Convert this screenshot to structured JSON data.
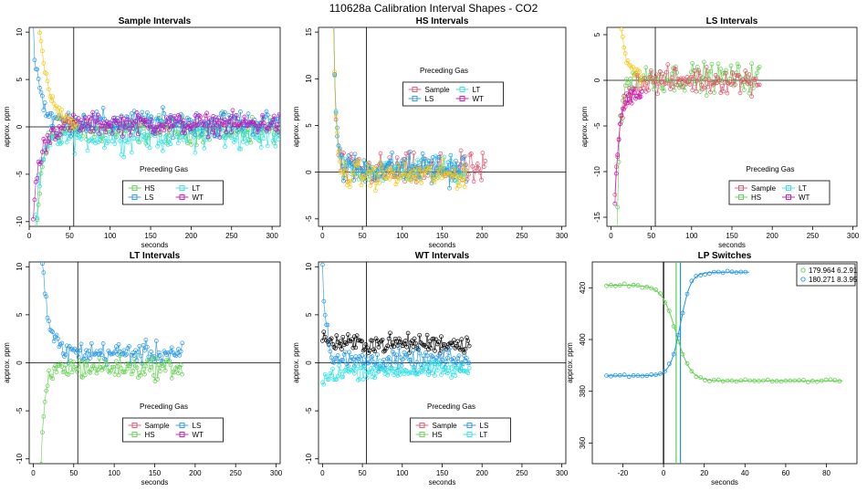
{
  "figure": {
    "title": "110628a   Calibration Interval Shapes - CO2"
  },
  "colors": {
    "Sample": "#DF536B",
    "HS": "#61D04F",
    "LS": "#2297E6",
    "LT": "#28E2E5",
    "WT": "#CD0BBC",
    "black": "#000000",
    "gold": "#F5C710"
  },
  "chart_data": [
    {
      "type": "scatter",
      "title": "Sample Intervals",
      "xlabel": "seconds",
      "ylabel": "approx. ppm",
      "xlim": [
        0,
        310
      ],
      "ylim": [
        -10.5,
        10.5
      ],
      "xticks": [
        0,
        50,
        100,
        150,
        200,
        250,
        300
      ],
      "yticks": [
        -10,
        -5,
        0,
        5,
        10
      ],
      "ref_lines": {
        "v": [
          55
        ],
        "h": [
          0
        ]
      },
      "legend": {
        "title": "Preceding Gas",
        "position": "bottom-center",
        "columns": 2,
        "entries": [
          "HS",
          "LT",
          "LS",
          "WT"
        ]
      },
      "series": [
        {
          "name": "HS",
          "color_key": "HS",
          "x_range": [
            5,
            310
          ],
          "plateau": -0.3,
          "noise": 1.0,
          "spike": -20,
          "decay": 7
        },
        {
          "name": "LT",
          "color_key": "LT",
          "x_range": [
            5,
            310
          ],
          "plateau": -0.8,
          "noise": 1.2,
          "spike": -14,
          "decay": 8
        },
        {
          "name": "LS",
          "color_key": "LS",
          "x_range": [
            5,
            310
          ],
          "plateau": 0.5,
          "noise": 0.9,
          "spike": 10,
          "decay": 8
        },
        {
          "name": "WT",
          "color_key": "WT",
          "x_range": [
            5,
            310
          ],
          "plateau": 0.3,
          "noise": 0.8,
          "spike": -9,
          "decay": 10
        },
        {
          "name": "",
          "color_key": "gold",
          "x_range": [
            5,
            60
          ],
          "plateau": 0.0,
          "noise": 0.6,
          "spike": 20,
          "decay": 12
        }
      ]
    },
    {
      "type": "scatter",
      "title": "HS Intervals",
      "xlabel": "seconds",
      "ylabel": "approx. ppm",
      "xlim": [
        -5,
        305
      ],
      "ylim": [
        -5.8,
        15.5
      ],
      "xticks": [
        0,
        50,
        100,
        150,
        200,
        250,
        300
      ],
      "yticks": [
        -5,
        0,
        5,
        10,
        15
      ],
      "ref_lines": {
        "v": [
          55
        ],
        "h": [
          0
        ]
      },
      "legend": {
        "title": "Preceding Gas",
        "position": "top-center",
        "columns": 2,
        "entries": [
          "Sample",
          "LT",
          "LS",
          "WT"
        ]
      },
      "series": [
        {
          "name": "Sample",
          "color_key": "Sample",
          "x_range": [
            12,
            205
          ],
          "plateau": 0.2,
          "noise": 1.2,
          "spike": 30,
          "decay": 3
        },
        {
          "name": "LT",
          "color_key": "LT",
          "x_range": [
            12,
            180
          ],
          "plateau": 0.3,
          "noise": 1.0,
          "spike": 30,
          "decay": 3
        },
        {
          "name": "LS",
          "color_key": "LS",
          "x_range": [
            12,
            180
          ],
          "plateau": 0.4,
          "noise": 1.2,
          "spike": 30,
          "decay": 3
        },
        {
          "name": "",
          "color_key": "gold",
          "x_range": [
            12,
            180
          ],
          "plateau": -0.3,
          "noise": 1.0,
          "spike": 30,
          "decay": 3
        }
      ]
    },
    {
      "type": "scatter",
      "title": "LS Intervals",
      "xlabel": "seconds",
      "ylabel": "approx. ppm",
      "xlim": [
        -5,
        305
      ],
      "ylim": [
        -16,
        5.8
      ],
      "xticks": [
        0,
        50,
        100,
        150,
        200,
        250,
        300
      ],
      "yticks": [
        -15,
        -10,
        -5,
        0,
        5
      ],
      "ref_lines": {
        "v": [
          55
        ],
        "h": [
          0
        ]
      },
      "legend": {
        "title": "Preceding Gas",
        "position": "bottom-right",
        "columns": 2,
        "entries": [
          "Sample",
          "LT",
          "HS",
          "WT"
        ]
      },
      "series": [
        {
          "name": "HS",
          "color_key": "HS",
          "x_range": [
            5,
            185
          ],
          "plateau": 0.3,
          "noise": 1.1,
          "spike": -30,
          "decay": 4
        },
        {
          "name": "Sample",
          "color_key": "Sample",
          "x_range": [
            5,
            185
          ],
          "plateau": 0.0,
          "noise": 1.0,
          "spike": -12,
          "decay": 8
        },
        {
          "name": "WT",
          "color_key": "WT",
          "x_range": [
            5,
            40
          ],
          "plateau": -1.5,
          "noise": 0.6,
          "spike": -12,
          "decay": 5
        },
        {
          "name": "",
          "color_key": "gold",
          "x_range": [
            5,
            40
          ],
          "plateau": 0.5,
          "noise": 0.5,
          "spike": 20,
          "decay": 6
        }
      ]
    },
    {
      "type": "scatter",
      "title": "LT Intervals",
      "xlabel": "seconds",
      "ylabel": "approx. ppm",
      "xlim": [
        -5,
        305
      ],
      "ylim": [
        -10.5,
        10.5
      ],
      "xticks": [
        0,
        50,
        100,
        150,
        200,
        250,
        300
      ],
      "yticks": [
        -10,
        -5,
        0,
        5,
        10
      ],
      "ref_lines": {
        "v": [
          55
        ],
        "h": [
          0
        ]
      },
      "legend": {
        "title": "Preceding Gas",
        "position": "bottom-center",
        "columns": 2,
        "entries": [
          "Sample",
          "LS",
          "HS",
          "WT"
        ]
      },
      "series": [
        {
          "name": "LS",
          "color_key": "LS",
          "x_range": [
            8,
            185
          ],
          "plateau": 1.0,
          "noise": 0.8,
          "spike": 14,
          "decay": 8
        },
        {
          "name": "HS",
          "color_key": "HS",
          "x_range": [
            8,
            185
          ],
          "plateau": -0.5,
          "noise": 0.8,
          "spike": -14,
          "decay": 5
        }
      ]
    },
    {
      "type": "scatter",
      "title": "WT Intervals",
      "xlabel": "seconds",
      "ylabel": "approx. ppm",
      "xlim": [
        -5,
        305
      ],
      "ylim": [
        -10.5,
        10.5
      ],
      "xticks": [
        0,
        50,
        100,
        150,
        200,
        250,
        300
      ],
      "yticks": [
        -10,
        -5,
        0,
        5,
        10
      ],
      "ref_lines": {
        "v": [
          55
        ],
        "h": [
          0
        ]
      },
      "legend": {
        "title": "Preceding Gas",
        "position": "bottom-center",
        "columns": 2,
        "entries": [
          "Sample",
          "LS",
          "HS",
          "LT"
        ]
      },
      "series": [
        {
          "name": "",
          "color_key": "black",
          "x_range": [
            0,
            185
          ],
          "plateau": 2.0,
          "noise": 0.7,
          "spike": 0.5,
          "decay": 10
        },
        {
          "name": "LS",
          "color_key": "LS",
          "x_range": [
            0,
            185
          ],
          "plateau": 0.2,
          "noise": 0.8,
          "spike": 10,
          "decay": 5
        },
        {
          "name": "LT",
          "color_key": "LT",
          "x_range": [
            0,
            185
          ],
          "plateau": -0.8,
          "noise": 0.6,
          "spike": -1.5,
          "decay": 10
        }
      ]
    },
    {
      "type": "line",
      "title": "LP Switches",
      "xlabel": "seconds",
      "ylabel": "approx. ppm",
      "xlim": [
        -35,
        95
      ],
      "ylim": [
        352,
        430
      ],
      "xticks": [
        -20,
        0,
        20,
        40,
        60,
        80
      ],
      "yticks": [
        360,
        380,
        400,
        420
      ],
      "ref_lines": {
        "v_black": [
          0
        ],
        "v_green": [
          6.2
        ],
        "v_blue": [
          8.3
        ]
      },
      "legend": {
        "position": "top-right",
        "columns": 1,
        "entries": [
          "179.964 6.2.91",
          "180.271 8.3.95"
        ]
      },
      "series": [
        {
          "name": "179.964 6.2.91",
          "color_key": "HS",
          "from": 421,
          "to": 384,
          "x_range": [
            -28,
            88
          ],
          "mid": 6.2,
          "width": 3.5
        },
        {
          "name": "180.271 8.3.95",
          "color_key": "LS",
          "from": 386,
          "to": 426,
          "x_range": [
            -28,
            42
          ],
          "mid": 8.3,
          "width": 2.5
        }
      ]
    }
  ]
}
